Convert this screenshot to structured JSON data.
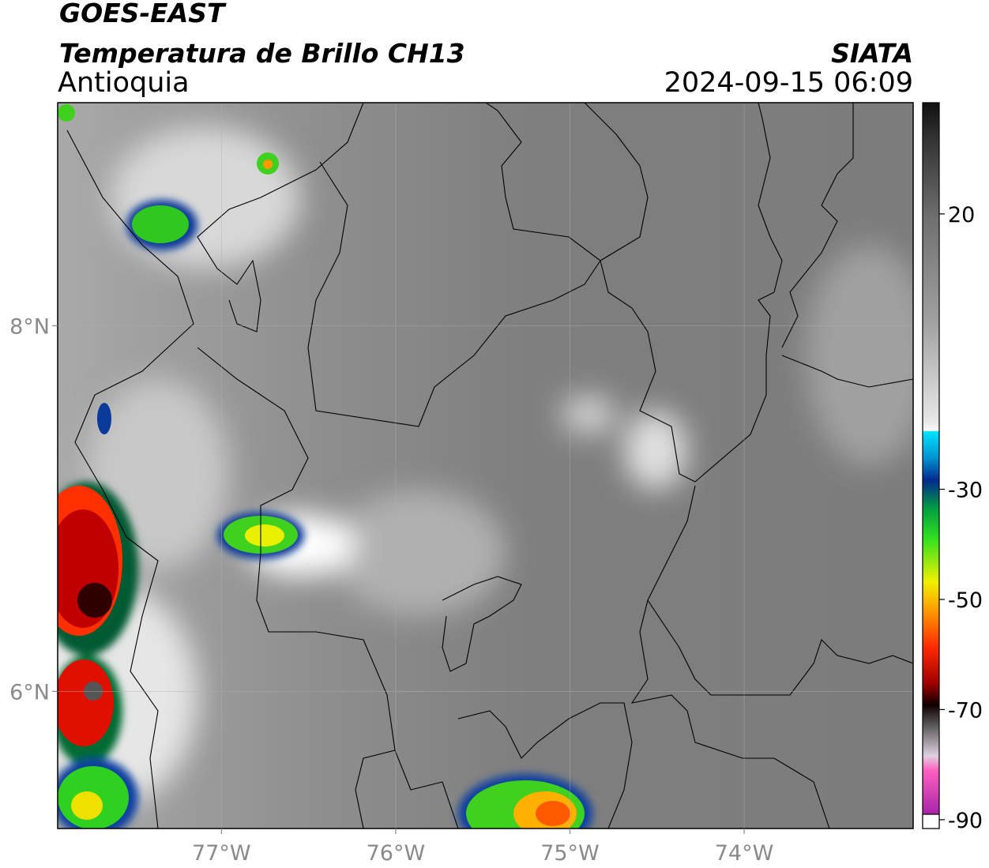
{
  "header": {
    "title": "GOES-EAST",
    "subtitle": "Temperatura de Brillo CH13",
    "region": "Antioquia",
    "source": "SIATA",
    "timestamp": "2024-09-15 06:09"
  },
  "map": {
    "xlim": [
      -77.94,
      -73.03
    ],
    "ylim": [
      5.25,
      9.22
    ],
    "xticks": [
      {
        "value": -77,
        "label": "77°W"
      },
      {
        "value": -76,
        "label": "76°W"
      },
      {
        "value": -75,
        "label": "75°W"
      },
      {
        "value": -74,
        "label": "74°W"
      }
    ],
    "yticks": [
      {
        "value": 8,
        "label": "8°N"
      },
      {
        "value": 6,
        "label": "6°N"
      }
    ],
    "grid": true
  },
  "colorbar": {
    "lim": [
      -91.6,
      40.2
    ],
    "ticks": [
      20,
      -30,
      -50,
      -70,
      -90
    ]
  }
}
